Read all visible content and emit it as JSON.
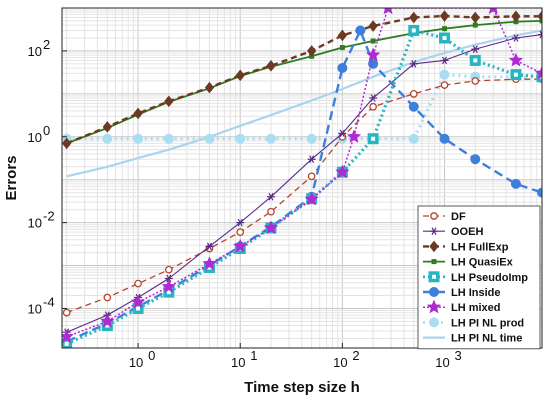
{
  "chart_data": {
    "type": "line",
    "xlabel": "Time step size h",
    "ylabel": "Errors",
    "xscale": "log",
    "yscale": "log",
    "xlim": [
      0.18,
      9000
    ],
    "ylim": [
      1.2e-05,
      1000
    ],
    "grid": true,
    "legend_position": "bottom-right",
    "x_ticks": [
      1,
      10,
      100,
      1000
    ],
    "x_tick_labels": [
      "10",
      "10",
      "10",
      "10"
    ],
    "x_tick_exponents": [
      "0",
      "1",
      "2",
      "3"
    ],
    "y_ticks": [
      0.0001,
      0.01,
      1,
      100
    ],
    "y_tick_labels": [
      "10",
      "10",
      "10",
      "10"
    ],
    "y_tick_exponents": [
      "-4",
      "-2",
      "0",
      "2"
    ],
    "series": [
      {
        "name": "DF",
        "color": "#b5442c",
        "dash": "6,4",
        "marker": "circle-open",
        "width": 1.3,
        "x": [
          0.2,
          0.5,
          1,
          2,
          5,
          10,
          20,
          50,
          100,
          200,
          500,
          1000,
          2000,
          5000,
          9000
        ],
        "y": [
          8e-05,
          0.00018,
          0.00038,
          0.0008,
          0.0025,
          0.006,
          0.018,
          0.12,
          1.0,
          5,
          10,
          16,
          20,
          22,
          22
        ]
      },
      {
        "name": "OOEH",
        "color": "#5b2a87",
        "dash": "",
        "marker": "star6",
        "width": 1.1,
        "x": [
          0.2,
          0.5,
          1,
          2,
          5,
          10,
          20,
          50,
          100,
          200,
          500,
          1000,
          2000,
          5000,
          9000
        ],
        "y": [
          2.8e-05,
          7e-05,
          0.00018,
          0.0005,
          0.0028,
          0.01,
          0.04,
          0.3,
          1.2,
          8,
          50,
          60,
          110,
          200,
          240
        ]
      },
      {
        "name": "LH FullExp",
        "color": "#6b3a22",
        "dash": "6,4",
        "marker": "diamond",
        "width": 2.4,
        "x": [
          0.2,
          0.5,
          1,
          2,
          5,
          10,
          20,
          50,
          100,
          200,
          500,
          1000,
          2000,
          5000,
          9000
        ],
        "y": [
          0.7,
          1.7,
          3.5,
          6.7,
          14,
          27,
          45,
          100,
          230,
          380,
          600,
          650,
          600,
          640,
          640
        ]
      },
      {
        "name": "LH QuasiEx",
        "color": "#2e7d20",
        "dash": "",
        "marker": "square",
        "width": 1.8,
        "x": [
          0.2,
          0.5,
          1,
          2,
          5,
          10,
          20,
          50,
          100,
          200,
          500,
          1000,
          2000,
          5000,
          9000
        ],
        "y": [
          0.7,
          1.6,
          3.3,
          6.5,
          13.5,
          26,
          43,
          75,
          120,
          170,
          260,
          330,
          400,
          480,
          500
        ]
      },
      {
        "name": "LH PseudoImp",
        "color": "#27b5c3",
        "dash": "2,3",
        "marker": "square-dot",
        "width": 3.2,
        "x": [
          0.2,
          0.5,
          1,
          2,
          5,
          10,
          20,
          50,
          100,
          200,
          500,
          1000,
          2000,
          5000,
          9000
        ],
        "y": [
          1.5e-05,
          4e-05,
          0.0001,
          0.00024,
          0.0009,
          0.0025,
          0.0075,
          0.036,
          0.15,
          0.9,
          300,
          200,
          60,
          28,
          25
        ]
      },
      {
        "name": "LH Inside",
        "color": "#3d7fd9",
        "dash": "9,5",
        "marker": "circle-filled",
        "width": 2.4,
        "x": [
          0.2,
          0.5,
          1,
          2,
          5,
          10,
          20,
          50,
          100,
          150,
          200,
          500,
          1000,
          2000,
          5000,
          9000
        ],
        "y": [
          1.7e-05,
          4.5e-05,
          0.00011,
          0.00027,
          0.001,
          0.0028,
          0.008,
          0.04,
          40,
          300,
          50,
          5,
          0.9,
          0.3,
          0.08,
          0.05
        ]
      },
      {
        "name": "LH mixed",
        "color": "#b02ad4",
        "dash": "2,2",
        "marker": "star5",
        "width": 1.5,
        "x": [
          0.2,
          0.5,
          1,
          2,
          5,
          10,
          20,
          50,
          100,
          130,
          200,
          280,
          3000,
          5000,
          9000
        ],
        "y": [
          2.2e-05,
          5e-05,
          0.00014,
          0.00032,
          0.0011,
          0.0028,
          0.0075,
          0.035,
          0.15,
          1,
          80,
          1000,
          1000,
          60,
          30
        ]
      },
      {
        "name": "LH PI NL prod",
        "color": "#a9ddf2",
        "dash": "2,4",
        "marker": "circle-filled",
        "width": 3.2,
        "x": [
          0.2,
          0.5,
          1,
          2,
          5,
          10,
          20,
          50,
          100,
          200,
          500,
          1000,
          2000,
          5000,
          9000
        ],
        "y": [
          0.9,
          0.9,
          0.9,
          0.9,
          0.9,
          0.9,
          0.9,
          0.9,
          0.9,
          0.9,
          0.9,
          28,
          25,
          25,
          25
        ]
      },
      {
        "name": "LH PI NL time",
        "color": "#aad4ee",
        "dash": "",
        "marker": "none",
        "width": 2.2,
        "x": [
          0.2,
          0.5,
          1,
          2,
          5,
          10,
          20,
          50,
          100,
          200,
          500,
          1000,
          2000,
          5000,
          9000
        ],
        "y": [
          0.12,
          0.2,
          0.32,
          0.5,
          1.0,
          1.8,
          3.2,
          7,
          13,
          25,
          55,
          90,
          140,
          230,
          300
        ]
      }
    ]
  }
}
